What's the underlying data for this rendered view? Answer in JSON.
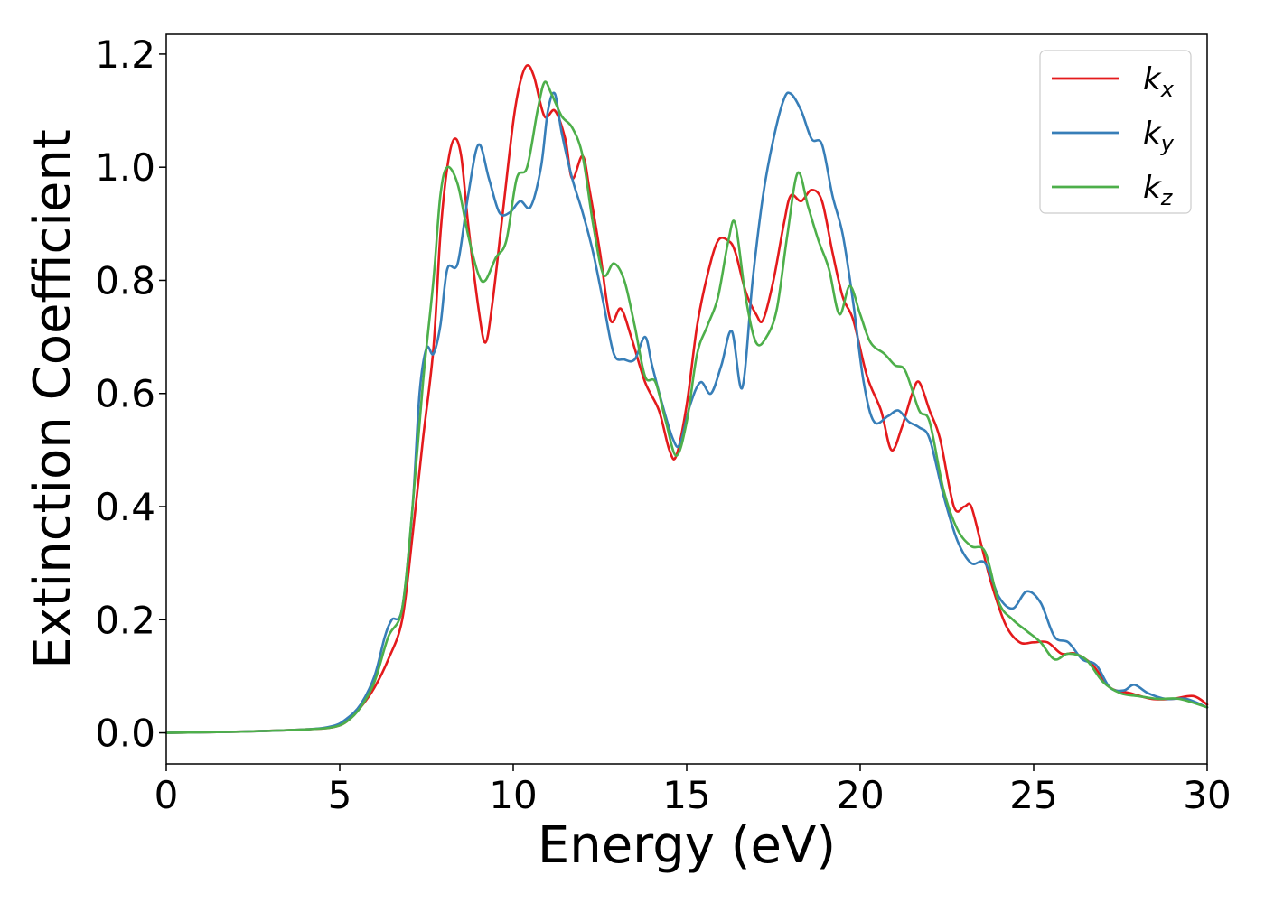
{
  "chart_data": {
    "type": "line",
    "title": "",
    "xlabel": "Energy (eV)",
    "ylabel": "Extinction Coefficient",
    "xlim": [
      0,
      30
    ],
    "ylim": [
      -0.055,
      1.235
    ],
    "xticks": [
      0,
      5,
      10,
      15,
      20,
      25,
      30
    ],
    "xtick_labels": [
      "0",
      "5",
      "10",
      "15",
      "20",
      "25",
      "30"
    ],
    "yticks": [
      0.0,
      0.2,
      0.4,
      0.6,
      0.8,
      1.0,
      1.2
    ],
    "ytick_labels": [
      "0.0",
      "0.2",
      "0.4",
      "0.6",
      "0.8",
      "1.0",
      "1.2"
    ],
    "grid": false,
    "legend_position": "top-right",
    "series": [
      {
        "name": "k",
        "subscript": "x",
        "color": "#e41a1c",
        "points": [
          [
            0,
            0
          ],
          [
            2,
            0.002
          ],
          [
            4,
            0.006
          ],
          [
            4.8,
            0.01
          ],
          [
            5.2,
            0.02
          ],
          [
            5.6,
            0.045
          ],
          [
            6.0,
            0.08
          ],
          [
            6.4,
            0.13
          ],
          [
            6.8,
            0.2
          ],
          [
            7.1,
            0.35
          ],
          [
            7.4,
            0.52
          ],
          [
            7.7,
            0.68
          ],
          [
            7.9,
            0.88
          ],
          [
            8.1,
            1.0
          ],
          [
            8.3,
            1.05
          ],
          [
            8.5,
            1.02
          ],
          [
            8.7,
            0.9
          ],
          [
            9.0,
            0.75
          ],
          [
            9.2,
            0.69
          ],
          [
            9.4,
            0.76
          ],
          [
            9.7,
            0.92
          ],
          [
            10.0,
            1.08
          ],
          [
            10.2,
            1.15
          ],
          [
            10.4,
            1.18
          ],
          [
            10.6,
            1.16
          ],
          [
            10.9,
            1.09
          ],
          [
            11.2,
            1.1
          ],
          [
            11.5,
            1.05
          ],
          [
            11.7,
            0.98
          ],
          [
            12.0,
            1.02
          ],
          [
            12.2,
            0.96
          ],
          [
            12.5,
            0.85
          ],
          [
            12.8,
            0.73
          ],
          [
            13.1,
            0.75
          ],
          [
            13.4,
            0.7
          ],
          [
            13.8,
            0.62
          ],
          [
            14.2,
            0.57
          ],
          [
            14.5,
            0.5
          ],
          [
            14.7,
            0.49
          ],
          [
            15.0,
            0.58
          ],
          [
            15.3,
            0.72
          ],
          [
            15.6,
            0.81
          ],
          [
            15.9,
            0.87
          ],
          [
            16.2,
            0.87
          ],
          [
            16.4,
            0.85
          ],
          [
            16.7,
            0.78
          ],
          [
            17.0,
            0.74
          ],
          [
            17.2,
            0.73
          ],
          [
            17.5,
            0.8
          ],
          [
            17.8,
            0.9
          ],
          [
            18.0,
            0.95
          ],
          [
            18.3,
            0.94
          ],
          [
            18.6,
            0.96
          ],
          [
            18.9,
            0.94
          ],
          [
            19.2,
            0.85
          ],
          [
            19.5,
            0.77
          ],
          [
            19.8,
            0.73
          ],
          [
            20.2,
            0.63
          ],
          [
            20.6,
            0.57
          ],
          [
            20.9,
            0.5
          ],
          [
            21.2,
            0.54
          ],
          [
            21.5,
            0.6
          ],
          [
            21.7,
            0.62
          ],
          [
            22.0,
            0.57
          ],
          [
            22.3,
            0.52
          ],
          [
            22.7,
            0.4
          ],
          [
            23.0,
            0.4
          ],
          [
            23.2,
            0.4
          ],
          [
            23.5,
            0.33
          ],
          [
            23.8,
            0.26
          ],
          [
            24.2,
            0.19
          ],
          [
            24.6,
            0.16
          ],
          [
            25.0,
            0.16
          ],
          [
            25.4,
            0.16
          ],
          [
            25.8,
            0.14
          ],
          [
            26.2,
            0.14
          ],
          [
            26.7,
            0.12
          ],
          [
            27.2,
            0.08
          ],
          [
            27.8,
            0.07
          ],
          [
            28.4,
            0.06
          ],
          [
            29.0,
            0.06
          ],
          [
            29.6,
            0.065
          ],
          [
            30,
            0.05
          ]
        ]
      },
      {
        "name": "k",
        "subscript": "y",
        "color": "#377eb8",
        "points": [
          [
            0,
            0
          ],
          [
            2,
            0.002
          ],
          [
            4,
            0.006
          ],
          [
            4.8,
            0.012
          ],
          [
            5.2,
            0.025
          ],
          [
            5.6,
            0.05
          ],
          [
            6.0,
            0.1
          ],
          [
            6.3,
            0.17
          ],
          [
            6.5,
            0.2
          ],
          [
            6.8,
            0.22
          ],
          [
            7.1,
            0.4
          ],
          [
            7.3,
            0.6
          ],
          [
            7.5,
            0.68
          ],
          [
            7.7,
            0.67
          ],
          [
            7.9,
            0.72
          ],
          [
            8.1,
            0.82
          ],
          [
            8.4,
            0.83
          ],
          [
            8.7,
            0.95
          ],
          [
            9.0,
            1.04
          ],
          [
            9.3,
            0.98
          ],
          [
            9.6,
            0.92
          ],
          [
            9.9,
            0.92
          ],
          [
            10.2,
            0.94
          ],
          [
            10.5,
            0.93
          ],
          [
            10.8,
            1.0
          ],
          [
            11.0,
            1.1
          ],
          [
            11.2,
            1.13
          ],
          [
            11.4,
            1.06
          ],
          [
            11.7,
            0.98
          ],
          [
            12.0,
            0.92
          ],
          [
            12.3,
            0.85
          ],
          [
            12.6,
            0.76
          ],
          [
            12.9,
            0.67
          ],
          [
            13.2,
            0.66
          ],
          [
            13.5,
            0.66
          ],
          [
            13.8,
            0.7
          ],
          [
            14.0,
            0.65
          ],
          [
            14.3,
            0.58
          ],
          [
            14.6,
            0.52
          ],
          [
            14.8,
            0.51
          ],
          [
            15.1,
            0.58
          ],
          [
            15.4,
            0.62
          ],
          [
            15.7,
            0.6
          ],
          [
            16.0,
            0.65
          ],
          [
            16.3,
            0.71
          ],
          [
            16.6,
            0.61
          ],
          [
            16.9,
            0.8
          ],
          [
            17.2,
            0.95
          ],
          [
            17.5,
            1.05
          ],
          [
            17.8,
            1.12
          ],
          [
            18.0,
            1.13
          ],
          [
            18.3,
            1.1
          ],
          [
            18.6,
            1.05
          ],
          [
            18.9,
            1.04
          ],
          [
            19.2,
            0.95
          ],
          [
            19.5,
            0.88
          ],
          [
            19.8,
            0.76
          ],
          [
            20.1,
            0.62
          ],
          [
            20.4,
            0.55
          ],
          [
            20.8,
            0.56
          ],
          [
            21.1,
            0.57
          ],
          [
            21.4,
            0.55
          ],
          [
            21.7,
            0.54
          ],
          [
            22.0,
            0.52
          ],
          [
            22.4,
            0.42
          ],
          [
            22.8,
            0.34
          ],
          [
            23.2,
            0.3
          ],
          [
            23.6,
            0.3
          ],
          [
            24.0,
            0.24
          ],
          [
            24.4,
            0.22
          ],
          [
            24.8,
            0.25
          ],
          [
            25.2,
            0.23
          ],
          [
            25.6,
            0.17
          ],
          [
            26.0,
            0.16
          ],
          [
            26.4,
            0.13
          ],
          [
            26.8,
            0.12
          ],
          [
            27.2,
            0.08
          ],
          [
            27.6,
            0.075
          ],
          [
            27.9,
            0.085
          ],
          [
            28.3,
            0.07
          ],
          [
            28.8,
            0.06
          ],
          [
            29.4,
            0.06
          ],
          [
            30,
            0.045
          ]
        ]
      },
      {
        "name": "k",
        "subscript": "z",
        "color": "#4daf4a",
        "points": [
          [
            0,
            0
          ],
          [
            2,
            0.002
          ],
          [
            4,
            0.006
          ],
          [
            4.8,
            0.01
          ],
          [
            5.2,
            0.02
          ],
          [
            5.6,
            0.045
          ],
          [
            6.0,
            0.09
          ],
          [
            6.4,
            0.17
          ],
          [
            6.8,
            0.22
          ],
          [
            7.1,
            0.4
          ],
          [
            7.4,
            0.62
          ],
          [
            7.7,
            0.8
          ],
          [
            7.9,
            0.95
          ],
          [
            8.1,
            1.0
          ],
          [
            8.4,
            0.97
          ],
          [
            8.7,
            0.88
          ],
          [
            9.0,
            0.81
          ],
          [
            9.2,
            0.8
          ],
          [
            9.5,
            0.84
          ],
          [
            9.8,
            0.87
          ],
          [
            10.1,
            0.98
          ],
          [
            10.4,
            1.0
          ],
          [
            10.7,
            1.1
          ],
          [
            10.9,
            1.15
          ],
          [
            11.1,
            1.13
          ],
          [
            11.4,
            1.09
          ],
          [
            11.7,
            1.07
          ],
          [
            12.0,
            1.02
          ],
          [
            12.3,
            0.9
          ],
          [
            12.6,
            0.81
          ],
          [
            12.9,
            0.83
          ],
          [
            13.2,
            0.8
          ],
          [
            13.5,
            0.72
          ],
          [
            13.8,
            0.63
          ],
          [
            14.1,
            0.62
          ],
          [
            14.4,
            0.55
          ],
          [
            14.7,
            0.49
          ],
          [
            15.0,
            0.55
          ],
          [
            15.3,
            0.67
          ],
          [
            15.6,
            0.72
          ],
          [
            15.9,
            0.77
          ],
          [
            16.2,
            0.87
          ],
          [
            16.4,
            0.9
          ],
          [
            16.7,
            0.77
          ],
          [
            17.0,
            0.69
          ],
          [
            17.3,
            0.7
          ],
          [
            17.6,
            0.75
          ],
          [
            17.9,
            0.88
          ],
          [
            18.2,
            0.99
          ],
          [
            18.5,
            0.93
          ],
          [
            18.8,
            0.87
          ],
          [
            19.1,
            0.82
          ],
          [
            19.4,
            0.74
          ],
          [
            19.7,
            0.79
          ],
          [
            20.0,
            0.74
          ],
          [
            20.3,
            0.69
          ],
          [
            20.7,
            0.67
          ],
          [
            21.0,
            0.65
          ],
          [
            21.3,
            0.64
          ],
          [
            21.7,
            0.57
          ],
          [
            22.0,
            0.55
          ],
          [
            22.4,
            0.43
          ],
          [
            22.8,
            0.36
          ],
          [
            23.2,
            0.33
          ],
          [
            23.6,
            0.32
          ],
          [
            24.0,
            0.23
          ],
          [
            24.4,
            0.2
          ],
          [
            24.8,
            0.18
          ],
          [
            25.2,
            0.16
          ],
          [
            25.6,
            0.13
          ],
          [
            26.0,
            0.14
          ],
          [
            26.5,
            0.13
          ],
          [
            27.0,
            0.09
          ],
          [
            27.5,
            0.07
          ],
          [
            28.0,
            0.065
          ],
          [
            28.6,
            0.06
          ],
          [
            29.2,
            0.06
          ],
          [
            30,
            0.045
          ]
        ]
      }
    ]
  }
}
